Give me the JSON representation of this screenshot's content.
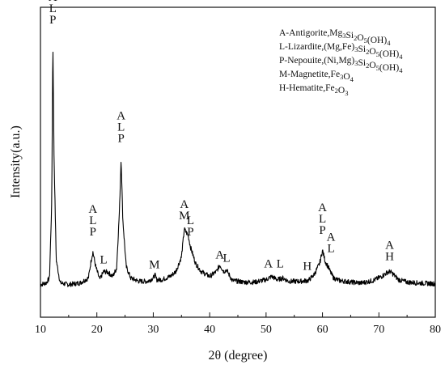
{
  "chart_data": {
    "type": "line",
    "xlabel": "2θ (degree)",
    "ylabel": "Intensity(a.u.)",
    "xlim": [
      10,
      80
    ],
    "x_ticks": [
      "10",
      "20",
      "30",
      "40",
      "50",
      "60",
      "70",
      "80"
    ],
    "y_ticks": [],
    "grid": false,
    "legend_position": "top-right",
    "legend": [
      {
        "id": "A",
        "text": "A-Antigorite,Mg3Si2O5(OH)4"
      },
      {
        "id": "L",
        "text": "L-Lizardite,(Mg,Fe)3Si2O5(OH)4"
      },
      {
        "id": "P",
        "text": "P-Nepouite,(Ni,Mg)3Si2O5(OH)4"
      },
      {
        "id": "M",
        "text": "M-Magnetite,Fe3O4"
      },
      {
        "id": "H",
        "text": "H-Hematite,Fe2O3"
      }
    ],
    "series": [
      {
        "x": [
          10,
          11,
          11.6,
          12.0,
          12.2,
          12.4,
          12.8,
          13.5,
          15,
          17,
          18.5,
          19.0,
          19.3,
          19.8,
          20.5,
          21.2,
          22.0,
          22.8,
          23.5,
          24.0,
          24.3,
          24.6,
          25.2,
          26.0,
          27.5,
          29.0,
          30.0,
          30.3,
          30.6,
          31.5,
          33.0,
          34.0,
          35.0,
          35.5,
          36.2,
          36.6,
          37.5,
          38.5,
          40.0,
          41.2,
          41.8,
          42.5,
          43.0,
          44.0,
          46.0,
          48.0,
          50.0,
          51.0,
          52.0,
          53.0,
          54.0,
          56.0,
          57.5,
          58.5,
          59.5,
          60.0,
          60.5,
          61.0,
          61.5,
          62.0,
          63.0,
          65.0,
          67.0,
          69.0,
          70.5,
          71.5,
          72.0,
          72.5,
          73.5,
          75.0,
          77.0,
          80.0
        ],
        "y": [
          40,
          42,
          48,
          140,
          340,
          200,
          70,
          42,
          40,
          42,
          48,
          70,
          80,
          62,
          46,
          56,
          55,
          50,
          60,
          130,
          195,
          120,
          62,
          48,
          44,
          44,
          48,
          52,
          46,
          46,
          50,
          56,
          74,
          108,
          100,
          86,
          66,
          56,
          50,
          56,
          64,
          56,
          58,
          45,
          43,
          43,
          46,
          50,
          46,
          48,
          44,
          44,
          45,
          52,
          66,
          82,
          68,
          62,
          54,
          48,
          45,
          43,
          42,
          45,
          50,
          55,
          56,
          53,
          46,
          43,
          42,
          41
        ]
      }
    ],
    "annotations": [
      {
        "x": 12.2,
        "y": 360,
        "lines": [
          "A",
          "L",
          "P"
        ]
      },
      {
        "x": 19.3,
        "y": 100,
        "lines": [
          "A",
          "L",
          "P"
        ]
      },
      {
        "x": 24.3,
        "y": 215,
        "lines": [
          "A",
          "L",
          "P"
        ]
      },
      {
        "x": 21.2,
        "y": 66,
        "lines": [
          "L"
        ]
      },
      {
        "x": 30.2,
        "y": 60,
        "lines": [
          "M"
        ]
      },
      {
        "x": 35.5,
        "y": 120,
        "lines": [
          "A",
          "M"
        ]
      },
      {
        "x": 36.6,
        "y": 100,
        "lines": [
          "L",
          "P"
        ]
      },
      {
        "x": 41.8,
        "y": 72,
        "lines": [
          "A"
        ]
      },
      {
        "x": 43.0,
        "y": 68,
        "lines": [
          "L"
        ]
      },
      {
        "x": 50.4,
        "y": 61,
        "lines": [
          "A"
        ]
      },
      {
        "x": 52.5,
        "y": 61,
        "lines": [
          "L"
        ]
      },
      {
        "x": 57.3,
        "y": 58,
        "lines": [
          "H"
        ]
      },
      {
        "x": 60.0,
        "y": 102,
        "lines": [
          "A",
          "L",
          "P"
        ]
      },
      {
        "x": 61.5,
        "y": 80,
        "lines": [
          "A",
          "L"
        ]
      },
      {
        "x": 71.9,
        "y": 70,
        "lines": [
          "A",
          "H"
        ]
      }
    ]
  }
}
